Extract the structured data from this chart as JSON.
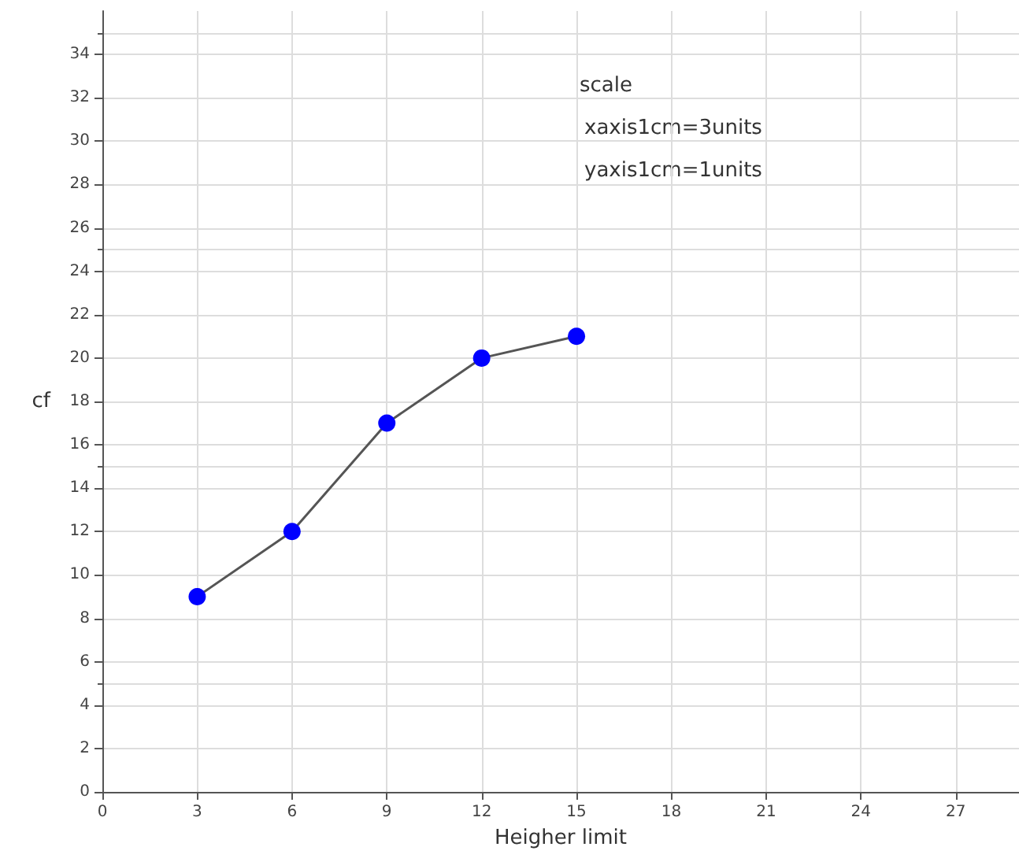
{
  "chart_data": {
    "type": "line",
    "xlabel": "Heigher limit",
    "ylabel": "cf",
    "x": [
      3,
      6,
      9,
      12,
      15
    ],
    "series": [
      {
        "color": "#0000ff",
        "values": [
          9,
          12,
          17,
          20,
          21
        ]
      }
    ],
    "xlim": [
      0,
      29
    ],
    "xticks": [
      0,
      3,
      6,
      9,
      12,
      15,
      18,
      21,
      24,
      27
    ],
    "ylim": [
      0,
      36
    ],
    "yticks": [
      0,
      2,
      4,
      6,
      8,
      10,
      12,
      14,
      16,
      18,
      20,
      22,
      24,
      26,
      28,
      30,
      32,
      34
    ],
    "grid": true,
    "marker": "circle",
    "line_style": "solid",
    "annotations": [
      "scale",
      "xaxis1cm=3units",
      "yaxis1cm=1units"
    ]
  }
}
